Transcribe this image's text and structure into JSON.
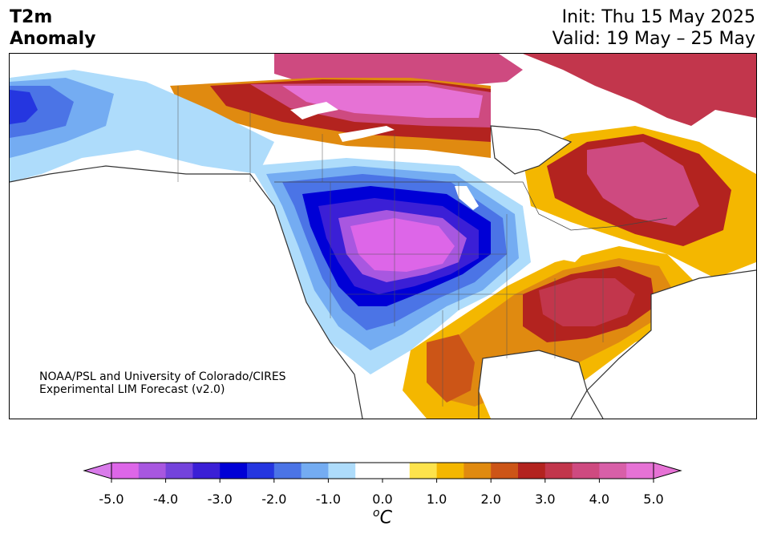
{
  "header": {
    "variable_line1": "T2m",
    "variable_line2": "Anomaly",
    "init": "Init: Thu 15 May 2025",
    "valid": "Valid: 19 May – 25 May"
  },
  "credit": {
    "line1": "NOAA/PSL and University of Colorado/CIRES",
    "line2": "Experimental LIM Forecast (v2.0)"
  },
  "colorbar": {
    "tick_labels": [
      "-5.0",
      "-4.0",
      "-3.0",
      "-2.0",
      "-1.0",
      "0.0",
      "1.0",
      "2.0",
      "3.0",
      "4.0",
      "5.0"
    ],
    "units_base": "o",
    "units_main": "C",
    "levels": [
      -5.0,
      -4.5,
      -4.0,
      -3.5,
      -3.0,
      -2.5,
      -2.0,
      -1.5,
      -1.0,
      -0.5,
      0.5,
      1.0,
      1.5,
      2.0,
      2.5,
      3.0,
      3.5,
      4.0,
      4.5,
      5.0
    ],
    "colors": [
      "#dd66e8",
      "#a857e0",
      "#7443dc",
      "#3b1fd6",
      "#0000d6",
      "#2536e0",
      "#4b74e6",
      "#74acf2",
      "#aedcfb",
      "#ffffff",
      "#fde34c",
      "#f4b700",
      "#e08a10",
      "#cc5517",
      "#b3231f",
      "#c2364c",
      "#ce4a80",
      "#d85fa8",
      "#e672d5"
    ],
    "under_color": "#d97bea",
    "over_color": "#e672d5"
  },
  "map": {
    "land_color": "#ffffff",
    "coastline_color": "#333333"
  }
}
